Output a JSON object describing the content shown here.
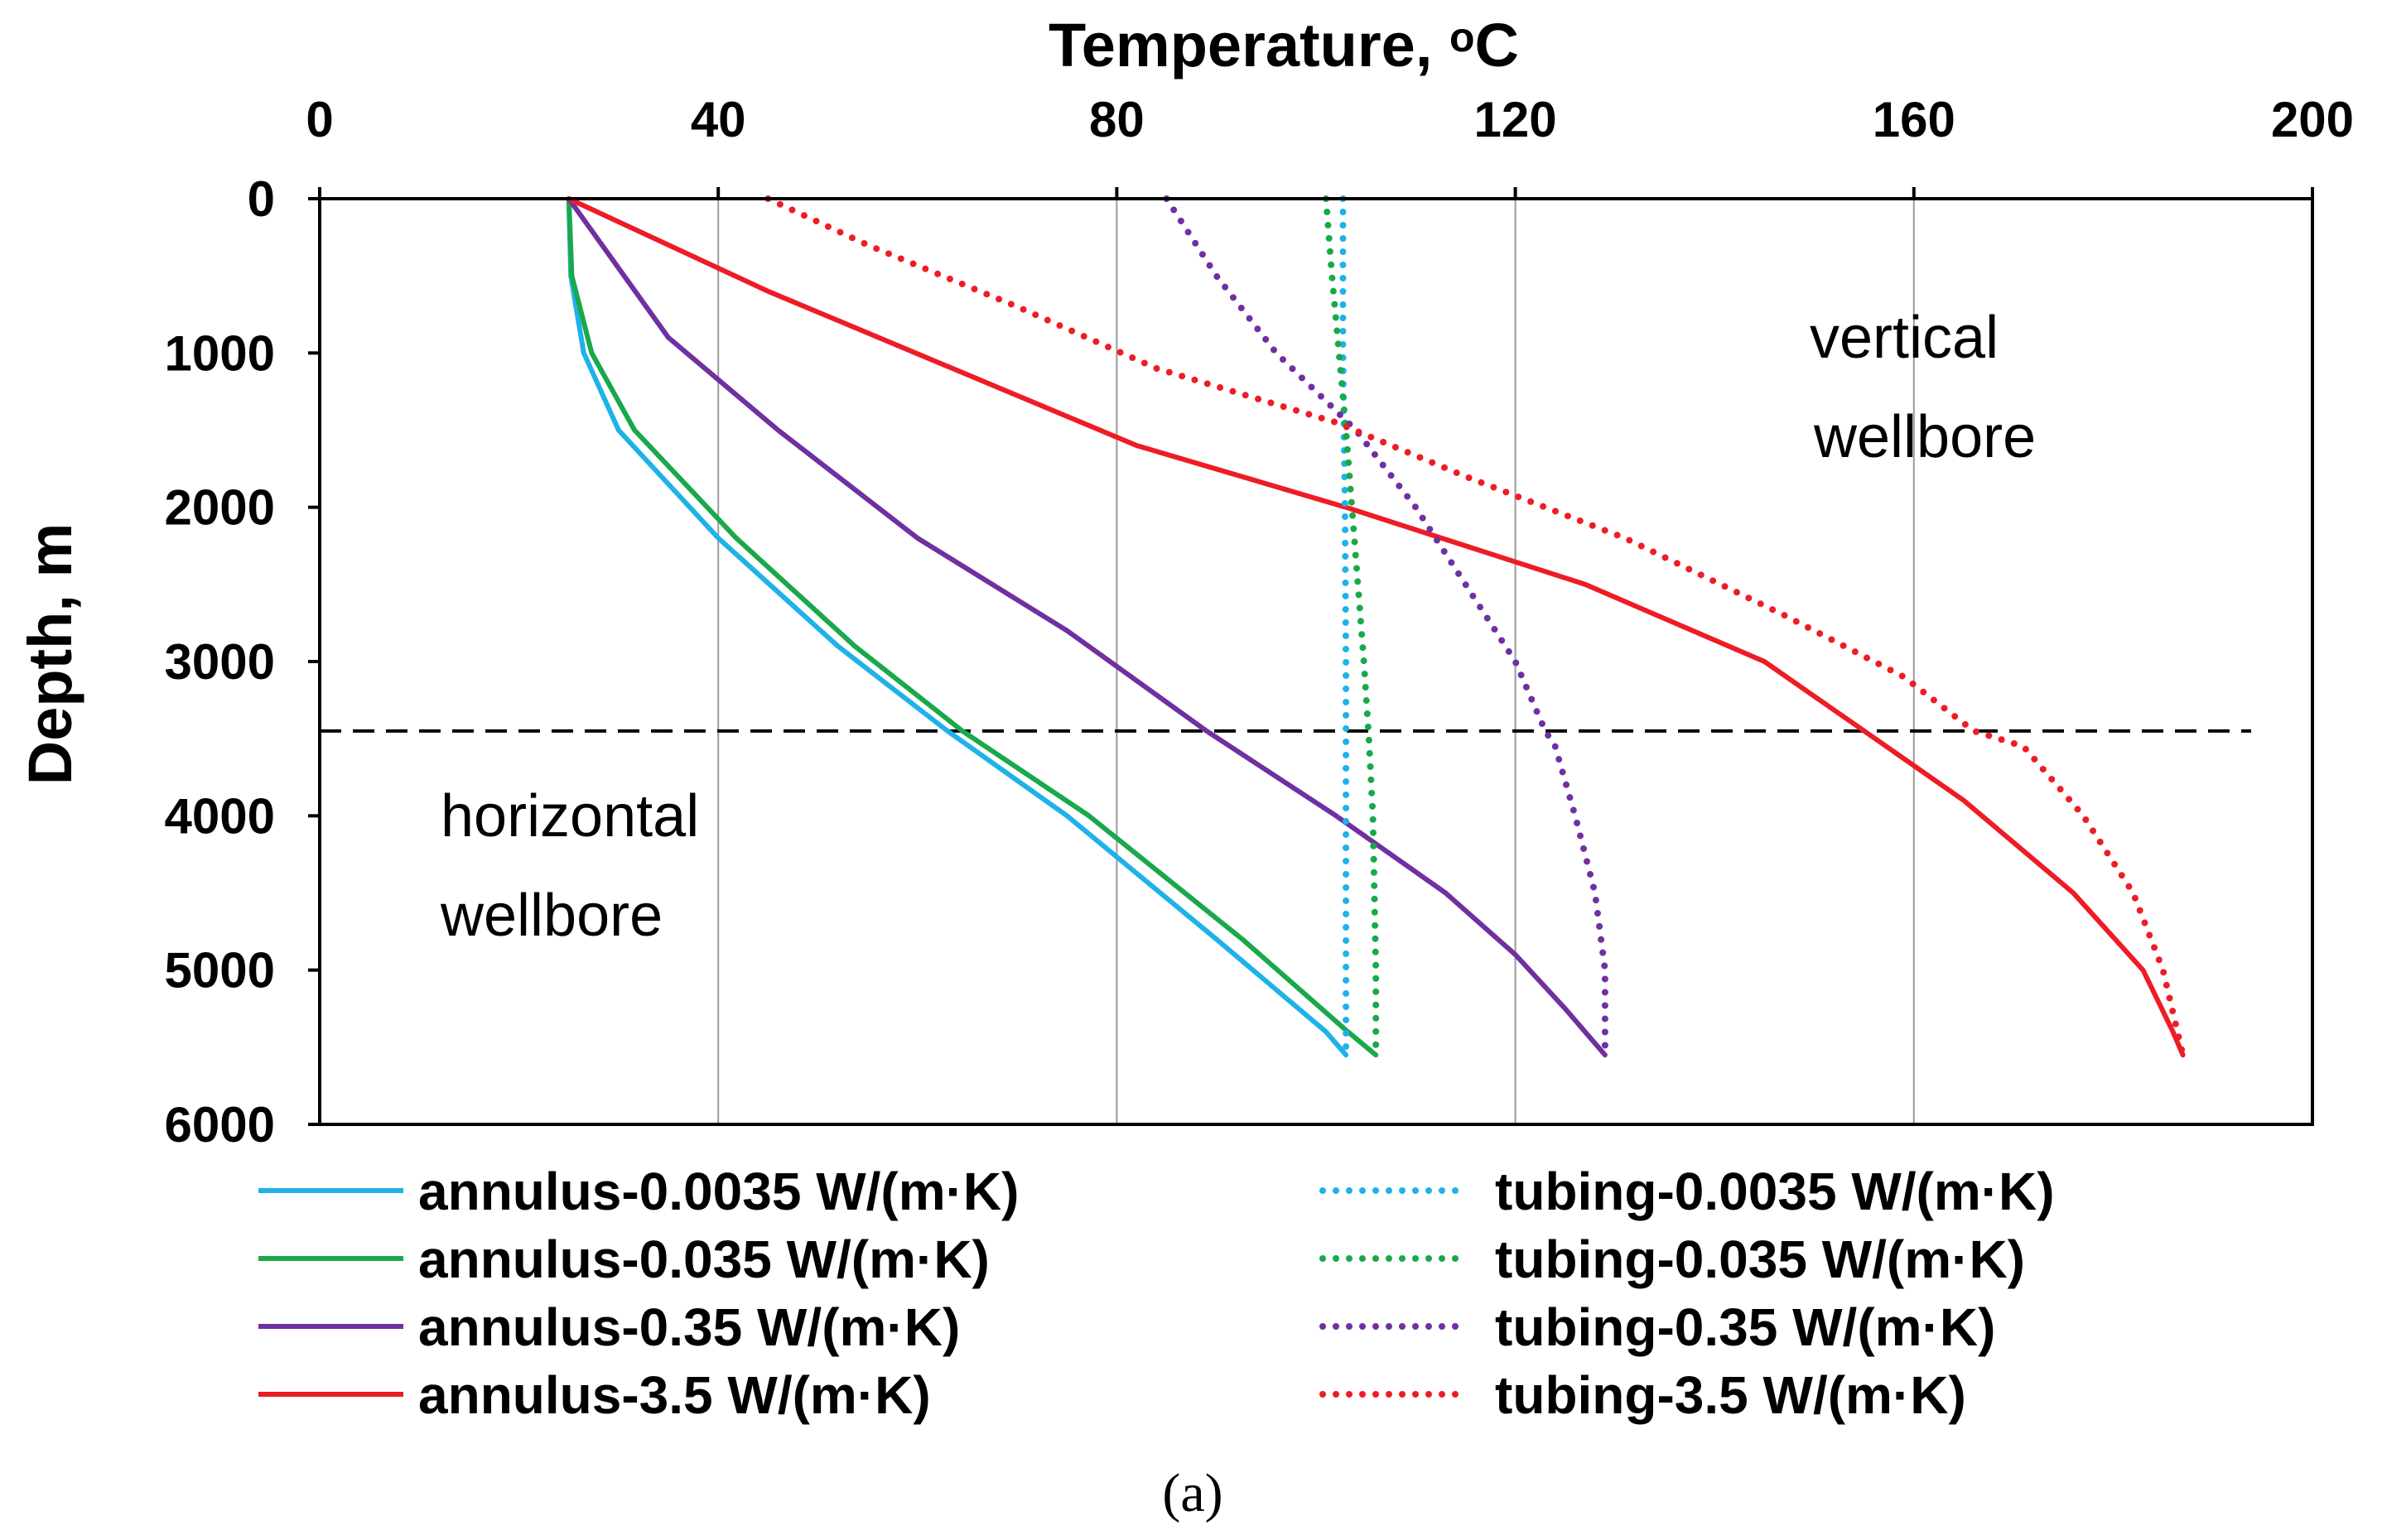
{
  "chart_data": {
    "type": "line",
    "title": "",
    "xlabel": "Temperature, ",
    "xlabel_superscript": "o",
    "xlabel_unit": "C",
    "ylabel": "Depth, m",
    "xlim": [
      0,
      200
    ],
    "ylim": [
      0,
      6000
    ],
    "y_inverted": true,
    "x_axis_position": "top",
    "x_ticks": [
      0,
      40,
      80,
      120,
      160,
      200
    ],
    "y_ticks": [
      0,
      1000,
      2000,
      3000,
      4000,
      5000,
      6000
    ],
    "grid": "vertical-only",
    "reference_line": {
      "depth": 3450,
      "style": "dashed",
      "color": "#000000"
    },
    "annotations": [
      {
        "lines": [
          "vertical",
          "wellbore"
        ]
      },
      {
        "lines": [
          "horizontal",
          "wellbore"
        ]
      }
    ],
    "caption": "(a)",
    "legend_position": "bottom",
    "series": [
      {
        "name": "annulus-0.0035 W/(m·K)",
        "color": "#1fb2e8",
        "style": "solid",
        "points": [
          [
            25,
            0
          ],
          [
            25.2,
            500
          ],
          [
            26.5,
            1000
          ],
          [
            30,
            1500
          ],
          [
            40,
            2200
          ],
          [
            52,
            2900
          ],
          [
            63,
            3450
          ],
          [
            75,
            4000
          ],
          [
            90,
            4800
          ],
          [
            101,
            5400
          ],
          [
            103,
            5550
          ]
        ]
      },
      {
        "name": "annulus-0.035 W/(m·K)",
        "color": "#19a84a",
        "style": "solid",
        "points": [
          [
            25,
            0
          ],
          [
            25.3,
            500
          ],
          [
            27.3,
            1000
          ],
          [
            31.6,
            1500
          ],
          [
            41.8,
            2200
          ],
          [
            53.7,
            2900
          ],
          [
            64.5,
            3450
          ],
          [
            77.2,
            4000
          ],
          [
            92.6,
            4800
          ],
          [
            103.2,
            5400
          ],
          [
            106,
            5550
          ]
        ]
      },
      {
        "name": "annulus-0.35 W/(m·K)",
        "color": "#7030a0",
        "style": "solid",
        "points": [
          [
            25,
            0
          ],
          [
            35,
            900
          ],
          [
            46,
            1500
          ],
          [
            60,
            2200
          ],
          [
            75,
            2800
          ],
          [
            89,
            3450
          ],
          [
            102,
            4000
          ],
          [
            113,
            4500
          ],
          [
            120,
            4900
          ],
          [
            125,
            5250
          ],
          [
            129,
            5550
          ]
        ]
      },
      {
        "name": "annulus-3.5 W/(m·K)",
        "color": "#ee1c25",
        "style": "solid",
        "points": [
          [
            25,
            0
          ],
          [
            45,
            600
          ],
          [
            82,
            1600
          ],
          [
            103,
            2000
          ],
          [
            127,
            2500
          ],
          [
            145,
            3000
          ],
          [
            155,
            3450
          ],
          [
            165,
            3900
          ],
          [
            176,
            4500
          ],
          [
            183,
            5000
          ],
          [
            186,
            5400
          ],
          [
            187,
            5550
          ]
        ]
      },
      {
        "name": "tubing-0.0035 W/(m·K)",
        "color": "#1fb2e8",
        "style": "dotted",
        "points": [
          [
            102.7,
            0
          ],
          [
            102.7,
            1000
          ],
          [
            102.9,
            2000
          ],
          [
            103,
            3000
          ],
          [
            103,
            4000
          ],
          [
            103,
            5000
          ],
          [
            103,
            5550
          ]
        ]
      },
      {
        "name": "tubing-0.035 W/(m·K)",
        "color": "#19a84a",
        "style": "dotted",
        "points": [
          [
            101,
            0
          ],
          [
            101.6,
            500
          ],
          [
            102.3,
            1000
          ],
          [
            103,
            1500
          ],
          [
            103.6,
            2000
          ],
          [
            104.2,
            2500
          ],
          [
            104.8,
            3000
          ],
          [
            105.3,
            3500
          ],
          [
            105.7,
            4000
          ],
          [
            106,
            5000
          ],
          [
            106,
            5550
          ]
        ]
      },
      {
        "name": "tubing-0.35 W/(m·K)",
        "color": "#7030a0",
        "style": "dotted",
        "points": [
          [
            85,
            0
          ],
          [
            90,
            500
          ],
          [
            96,
            1000
          ],
          [
            104,
            1500
          ],
          [
            110,
            2000
          ],
          [
            115,
            2500
          ],
          [
            120,
            3000
          ],
          [
            123,
            3450
          ],
          [
            124,
            3550
          ],
          [
            126,
            4000
          ],
          [
            128,
            4500
          ],
          [
            129,
            5000
          ],
          [
            129,
            5550
          ]
        ]
      },
      {
        "name": "tubing-3.5 W/(m·K)",
        "color": "#ee1c25",
        "style": "dotted",
        "points": [
          [
            45,
            0
          ],
          [
            55,
            300
          ],
          [
            70,
            700
          ],
          [
            84,
            1100
          ],
          [
            102,
            1450
          ],
          [
            115,
            1800
          ],
          [
            131,
            2200
          ],
          [
            147,
            2700
          ],
          [
            159,
            3100
          ],
          [
            166,
            3450
          ],
          [
            171,
            3550
          ],
          [
            177,
            4000
          ],
          [
            182,
            4500
          ],
          [
            185,
            5000
          ],
          [
            187,
            5550
          ]
        ]
      }
    ]
  }
}
